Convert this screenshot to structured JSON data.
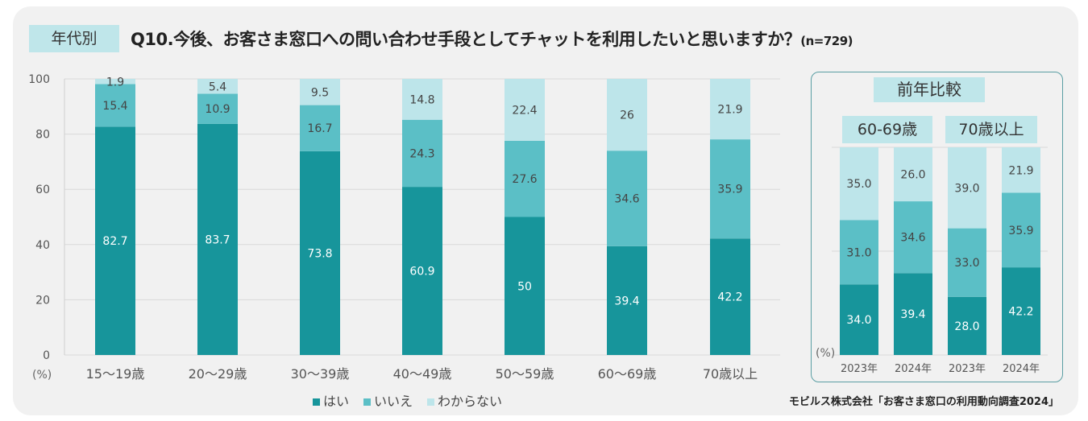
{
  "header": {
    "tag": "年代別",
    "title": "Q10.今後、お客さま窓口への問い合わせ手段としてチャットを利用したいと思いますか？",
    "n": "(n=729)"
  },
  "legend": [
    "はい",
    "いいえ",
    "わからない"
  ],
  "colors": {
    "yes": "#17959b",
    "no": "#5bbfc6",
    "unknown": "#bde5ea"
  },
  "source": "モビルス株式会社「お客さま窓口の利用動向調査2024」",
  "comparison": {
    "title": "前年比較",
    "groups": [
      "60-69歳",
      "70歳以上"
    ]
  },
  "chart_data": [
    {
      "type": "bar",
      "stacked": true,
      "title": "年代別",
      "ylabel": "(%)",
      "ylim": [
        0,
        100
      ],
      "yticks": [
        "0",
        "20",
        "40",
        "60",
        "80",
        "100"
      ],
      "categories": [
        "15～19歳",
        "20～29歳",
        "30～39歳",
        "40～49歳",
        "50～59歳",
        "60～69歳",
        "70歳以上"
      ],
      "series": [
        {
          "name": "はい",
          "values": [
            "82.7",
            "83.7",
            "73.8",
            "60.9",
            "50",
            "39.4",
            "42.2"
          ]
        },
        {
          "name": "いいえ",
          "values": [
            "15.4",
            "10.9",
            "16.7",
            "24.3",
            "27.6",
            "34.6",
            "35.9"
          ]
        },
        {
          "name": "わからない",
          "values": [
            "1.9",
            "5.4",
            "9.5",
            "14.8",
            "22.4",
            "26",
            "21.9"
          ]
        }
      ],
      "legend": "bottom",
      "grid": true
    },
    {
      "type": "bar",
      "stacked": true,
      "title": "前年比較",
      "ylabel": "(%)",
      "ylim": [
        0,
        100
      ],
      "categories": [
        "2023年",
        "2024年",
        "2023年",
        "2024年"
      ],
      "groups": [
        "60-69歳",
        "70歳以上"
      ],
      "series": [
        {
          "name": "はい",
          "values": [
            "34.0",
            "39.4",
            "28.0",
            "42.2"
          ]
        },
        {
          "name": "いいえ",
          "values": [
            "31.0",
            "34.6",
            "33.0",
            "35.9"
          ]
        },
        {
          "name": "わからない",
          "values": [
            "35.0",
            "26.0",
            "39.0",
            "21.9"
          ]
        }
      ],
      "grid": true
    }
  ]
}
